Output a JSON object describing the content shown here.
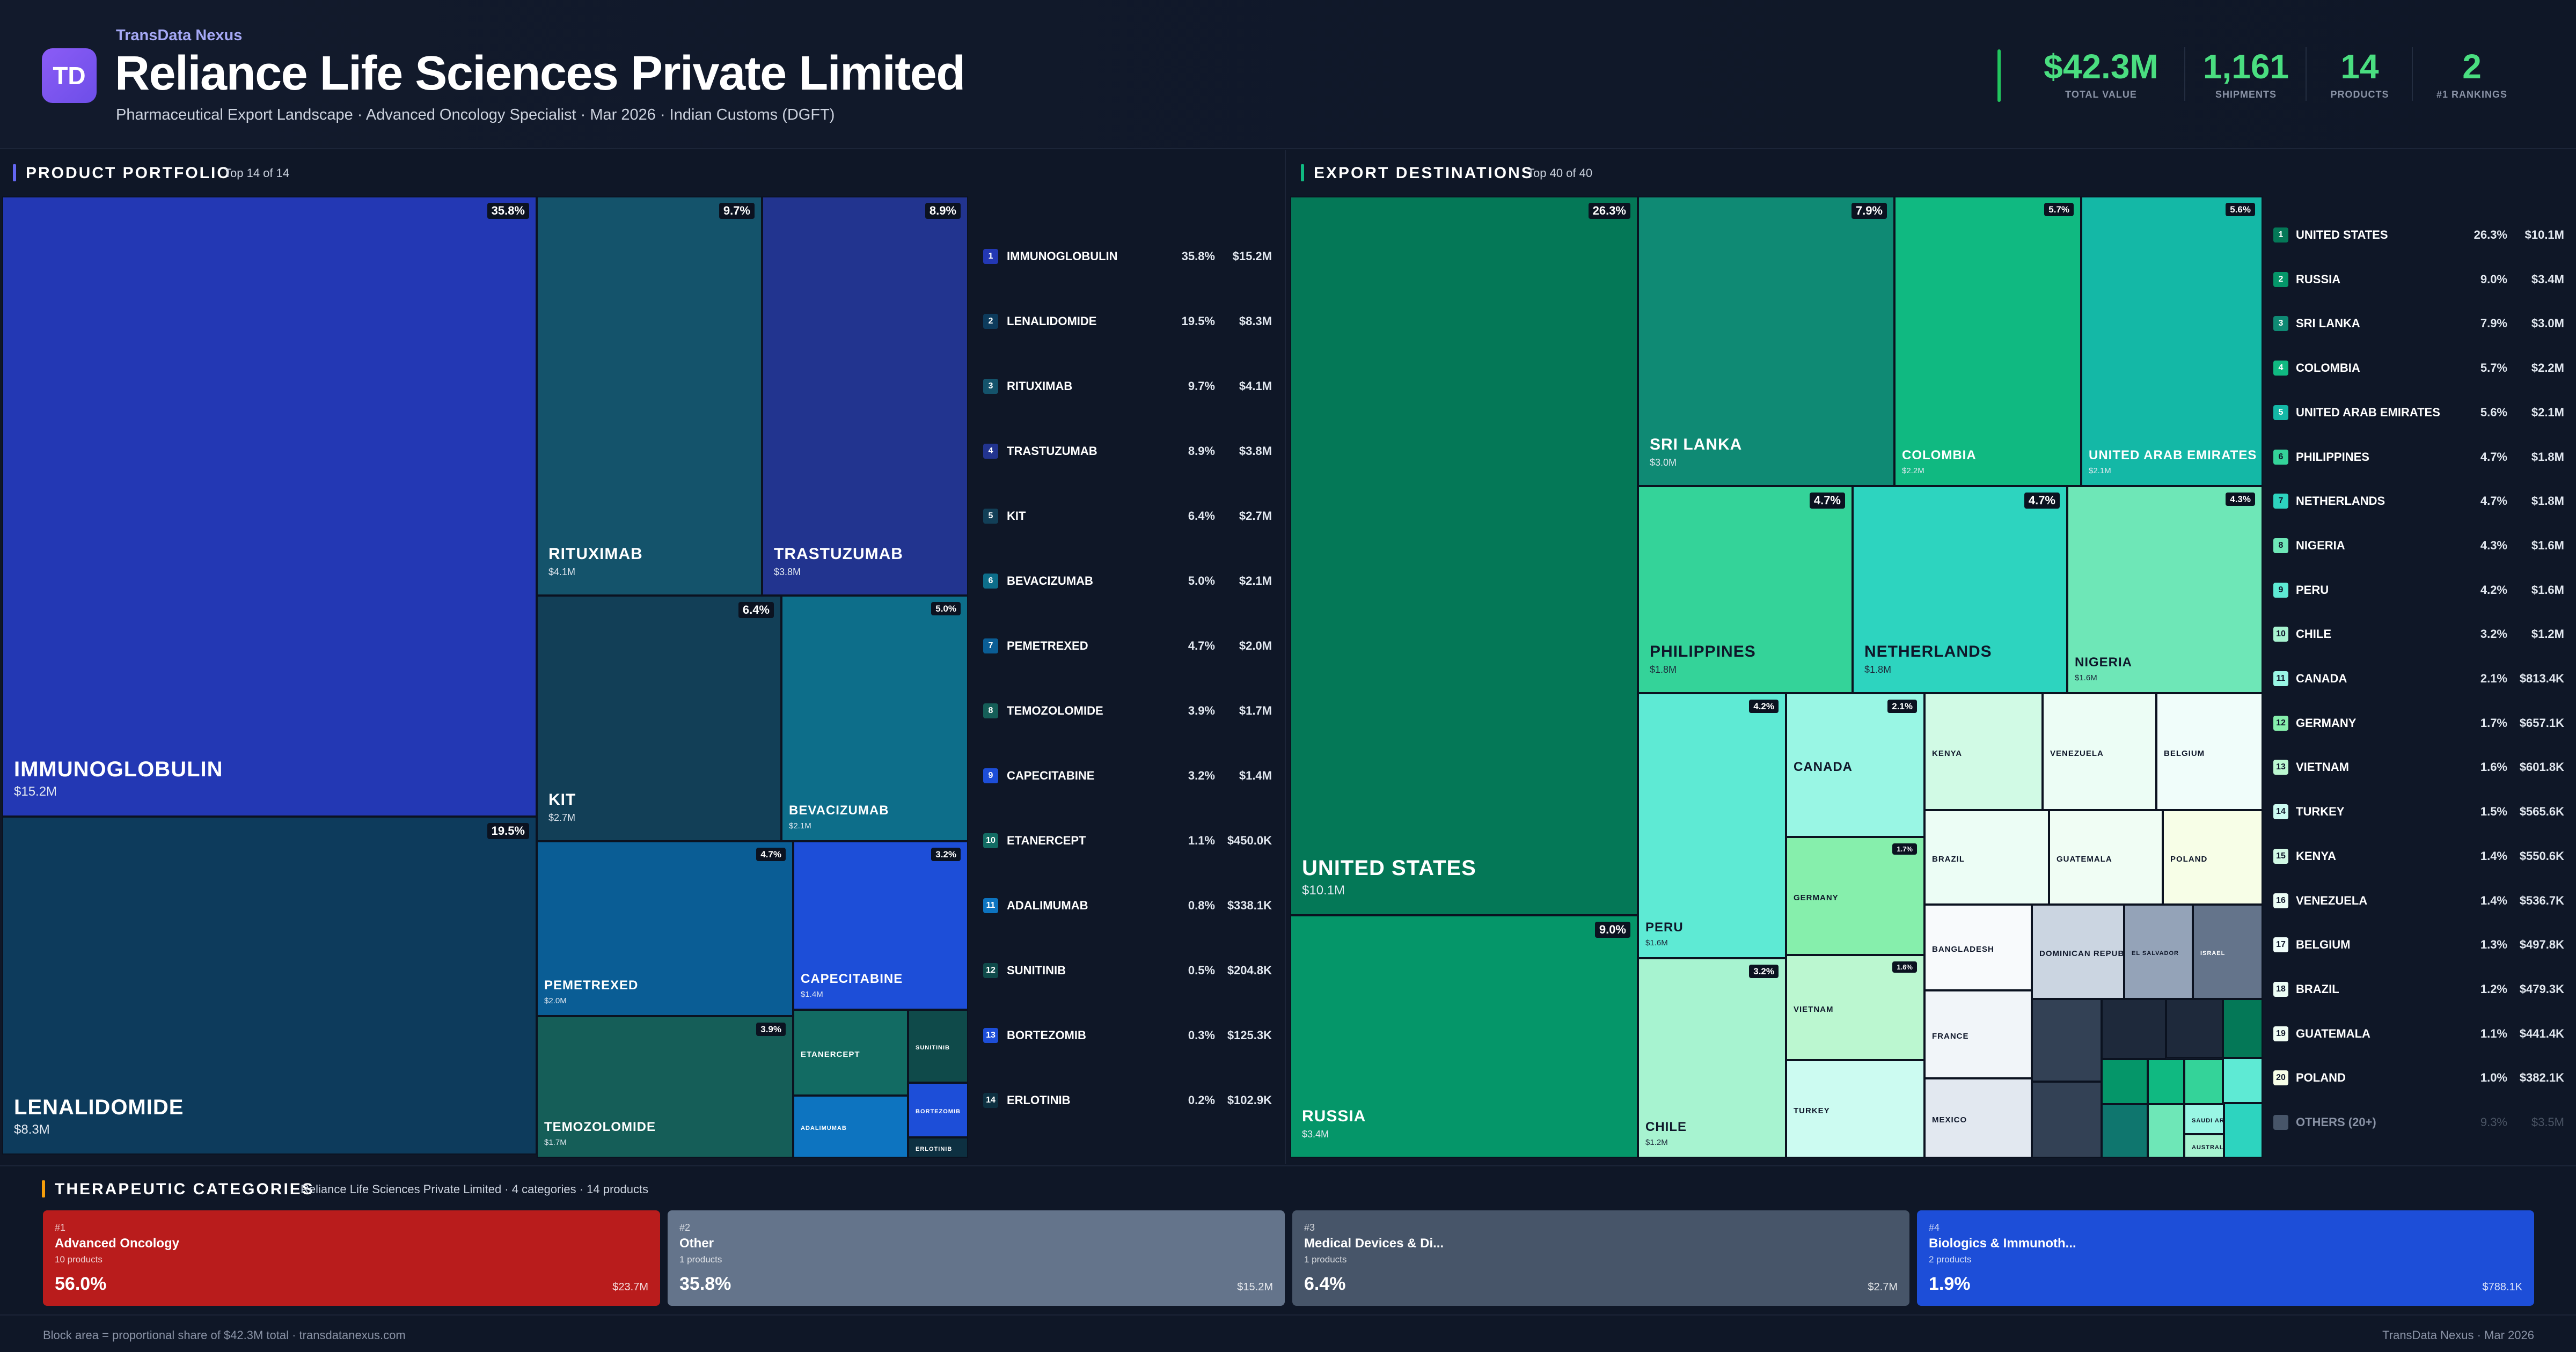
{
  "header": {
    "logo": "TD",
    "brand": "TransData Nexus",
    "title": "Reliance Life Sciences Private Limited",
    "subtitle": "Pharmaceutical Export Landscape · Advanced Oncology Specialist · Mar 2026 · Indian Customs (DGFT)",
    "stats": [
      {
        "value": "$42.3M",
        "label": "TOTAL VALUE"
      },
      {
        "value": "1,161",
        "label": "SHIPMENTS"
      },
      {
        "value": "14",
        "label": "PRODUCTS"
      },
      {
        "value": "2",
        "label": "#1 RANKINGS"
      }
    ]
  },
  "products": {
    "title": "PRODUCT PORTFOLIO",
    "subtitle": "Top 14 of 14",
    "tiles": [
      {
        "name": "IMMUNOGLOBULIN",
        "value": "$15.2M",
        "pct": "35.8%",
        "color": "#2338b4"
      },
      {
        "name": "LENALIDOMIDE",
        "value": "$8.3M",
        "pct": "19.5%",
        "color": "#0d3b5c"
      },
      {
        "name": "RITUXIMAB",
        "value": "$4.1M",
        "pct": "9.7%",
        "color": "#14536b"
      },
      {
        "name": "TRASTUZUMAB",
        "value": "$3.8M",
        "pct": "8.9%",
        "color": "#22348f"
      },
      {
        "name": "KIT",
        "value": "$2.7M",
        "pct": "6.4%",
        "color": "#123f57"
      },
      {
        "name": "BEVACIZUMAB",
        "value": "$2.1M",
        "pct": "5.0%",
        "color": "#0d6e8a"
      },
      {
        "name": "PEMETREXED",
        "value": "$2.0M",
        "pct": "4.7%",
        "color": "#0a5d95"
      },
      {
        "name": "CAPECITABINE",
        "value": "$1.4M",
        "pct": "3.2%",
        "color": "#1d4ed8"
      },
      {
        "name": "TEMOZOLOMIDE",
        "value": "$1.7M",
        "pct": "3.9%",
        "color": "#155e58"
      },
      {
        "name": "ETANERCEPT",
        "value": "",
        "pct": "",
        "color": "#126b63"
      },
      {
        "name": "SUNITINIB",
        "value": "",
        "pct": "",
        "color": "#0f4a4a"
      },
      {
        "name": "BORTEZOMIB",
        "value": "",
        "pct": "",
        "color": "#1d4ed8"
      },
      {
        "name": "ADALIMUMAB",
        "value": "",
        "pct": "",
        "color": "#0d74c0"
      },
      {
        "name": "ERLOTINIB",
        "value": "",
        "pct": "",
        "color": "#0d3041"
      }
    ],
    "list": [
      {
        "rank": "1",
        "name": "IMMUNOGLOBULIN",
        "pct": "35.8%",
        "value": "$15.2M",
        "color": "#2338b4"
      },
      {
        "rank": "2",
        "name": "LENALIDOMIDE",
        "pct": "19.5%",
        "value": "$8.3M",
        "color": "#0d3b5c"
      },
      {
        "rank": "3",
        "name": "RITUXIMAB",
        "pct": "9.7%",
        "value": "$4.1M",
        "color": "#14536b"
      },
      {
        "rank": "4",
        "name": "TRASTUZUMAB",
        "pct": "8.9%",
        "value": "$3.8M",
        "color": "#22348f"
      },
      {
        "rank": "5",
        "name": "KIT",
        "pct": "6.4%",
        "value": "$2.7M",
        "color": "#123f57"
      },
      {
        "rank": "6",
        "name": "BEVACIZUMAB",
        "pct": "5.0%",
        "value": "$2.1M",
        "color": "#0d6e8a"
      },
      {
        "rank": "7",
        "name": "PEMETREXED",
        "pct": "4.7%",
        "value": "$2.0M",
        "color": "#0a5d95"
      },
      {
        "rank": "8",
        "name": "TEMOZOLOMIDE",
        "pct": "3.9%",
        "value": "$1.7M",
        "color": "#155e58"
      },
      {
        "rank": "9",
        "name": "CAPECITABINE",
        "pct": "3.2%",
        "value": "$1.4M",
        "color": "#1d4ed8"
      },
      {
        "rank": "10",
        "name": "ETANERCEPT",
        "pct": "1.1%",
        "value": "$450.0K",
        "color": "#126b63"
      },
      {
        "rank": "11",
        "name": "ADALIMUMAB",
        "pct": "0.8%",
        "value": "$338.1K",
        "color": "#0d74c0"
      },
      {
        "rank": "12",
        "name": "SUNITINIB",
        "pct": "0.5%",
        "value": "$204.8K",
        "color": "#0f4a4a"
      },
      {
        "rank": "13",
        "name": "BORTEZOMIB",
        "pct": "0.3%",
        "value": "$125.3K",
        "color": "#1d4ed8"
      },
      {
        "rank": "14",
        "name": "ERLOTINIB",
        "pct": "0.2%",
        "value": "$102.9K",
        "color": "#0d3041"
      }
    ]
  },
  "destinations": {
    "title": "EXPORT DESTINATIONS",
    "subtitle": "Top 40 of 40",
    "tiles": [
      {
        "name": "UNITED STATES",
        "value": "$10.1M",
        "pct": "26.3%",
        "color": "#047857"
      },
      {
        "name": "RUSSIA",
        "value": "$3.4M",
        "pct": "9.0%",
        "color": "#059669"
      },
      {
        "name": "SRI LANKA",
        "value": "$3.0M",
        "pct": "7.9%",
        "color": "#0f8a74"
      },
      {
        "name": "COLOMBIA",
        "value": "$2.2M",
        "pct": "5.7%",
        "color": "#10b981"
      },
      {
        "name": "UNITED ARAB EMIRATES",
        "value": "$2.1M",
        "pct": "5.6%",
        "color": "#14b8a6"
      },
      {
        "name": "PHILIPPINES",
        "value": "$1.8M",
        "pct": "4.7%",
        "color": "#34d399"
      },
      {
        "name": "NETHERLANDS",
        "value": "$1.8M",
        "pct": "4.7%",
        "color": "#2dd4bf"
      },
      {
        "name": "NIGERIA",
        "value": "$1.6M",
        "pct": "4.3%",
        "color": "#6ee7b7"
      },
      {
        "name": "PERU",
        "value": "$1.6M",
        "pct": "4.2%",
        "color": "#5eead4"
      },
      {
        "name": "CHILE",
        "value": "$1.2M",
        "pct": "3.2%",
        "color": "#a7f3d0"
      },
      {
        "name": "CANADA",
        "value": "",
        "pct": "2.1%",
        "color": "#99f6e4"
      },
      {
        "name": "GERMANY",
        "value": "",
        "pct": "1.7%",
        "color": "#86efac"
      },
      {
        "name": "VIETNAM",
        "value": "",
        "pct": "1.6%",
        "color": "#bbf7d0"
      },
      {
        "name": "TURKEY",
        "value": "",
        "pct": "",
        "color": "#ccfbf1"
      },
      {
        "name": "KENYA",
        "value": "",
        "pct": "",
        "color": "#d1fae5"
      },
      {
        "name": "VENEZUELA",
        "value": "",
        "pct": "",
        "color": "#ecfdf5"
      },
      {
        "name": "BELGIUM",
        "value": "",
        "pct": "",
        "color": "#f0fdfa"
      },
      {
        "name": "BRAZIL",
        "value": "",
        "pct": "",
        "color": "#ecfdf5"
      },
      {
        "name": "GUATEMALA",
        "value": "",
        "pct": "",
        "color": "#f0fdf4"
      },
      {
        "name": "POLAND",
        "value": "",
        "pct": "",
        "color": "#f7fee7"
      },
      {
        "name": "BANGLADESH",
        "value": "",
        "pct": "",
        "color": "#f8fafc"
      },
      {
        "name": "DOMINICAN REPUBLIC",
        "value": "",
        "pct": "",
        "color": "#cbd5e1"
      },
      {
        "name": "EL SALVADOR",
        "value": "",
        "pct": "",
        "color": "#94a3b8"
      },
      {
        "name": "ISRAEL",
        "value": "",
        "pct": "",
        "color": "#64748b"
      },
      {
        "name": "FRANCE",
        "value": "",
        "pct": "",
        "color": "#f1f5f9"
      },
      {
        "name": "MEXICO",
        "value": "",
        "pct": "",
        "color": "#e2e8f0"
      },
      {
        "name": "",
        "value": "",
        "pct": "",
        "color": "#334155"
      },
      {
        "name": "",
        "value": "",
        "pct": "",
        "color": "#1e293b"
      },
      {
        "name": "",
        "value": "",
        "pct": "",
        "color": "#1e293b"
      },
      {
        "name": "",
        "value": "",
        "pct": "",
        "color": "#047857"
      },
      {
        "name": "",
        "value": "",
        "pct": "",
        "color": "#334155"
      },
      {
        "name": "",
        "value": "",
        "pct": "",
        "color": "#059669"
      },
      {
        "name": "",
        "value": "",
        "pct": "",
        "color": "#10b981"
      },
      {
        "name": "",
        "value": "",
        "pct": "",
        "color": "#34d399"
      },
      {
        "name": "",
        "value": "",
        "pct": "",
        "color": "#5eead4"
      },
      {
        "name": "",
        "value": "",
        "pct": "",
        "color": "#0f766e"
      },
      {
        "name": "",
        "value": "",
        "pct": "",
        "color": "#6ee7b7"
      },
      {
        "name": "SAUDI ARABIA",
        "value": "",
        "pct": "",
        "color": "#99f6e4"
      },
      {
        "name": "AUSTRALIA",
        "value": "",
        "pct": "",
        "color": "#a7f3d0"
      },
      {
        "name": "",
        "value": "",
        "pct": "",
        "color": "#2dd4bf"
      }
    ],
    "list": [
      {
        "rank": "1",
        "name": "UNITED STATES",
        "pct": "26.3%",
        "value": "$10.1M",
        "color": "#047857"
      },
      {
        "rank": "2",
        "name": "RUSSIA",
        "pct": "9.0%",
        "value": "$3.4M",
        "color": "#059669"
      },
      {
        "rank": "3",
        "name": "SRI LANKA",
        "pct": "7.9%",
        "value": "$3.0M",
        "color": "#0f8a74"
      },
      {
        "rank": "4",
        "name": "COLOMBIA",
        "pct": "5.7%",
        "value": "$2.2M",
        "color": "#10b981"
      },
      {
        "rank": "5",
        "name": "UNITED ARAB EMIRATES",
        "pct": "5.6%",
        "value": "$2.1M",
        "color": "#14b8a6"
      },
      {
        "rank": "6",
        "name": "PHILIPPINES",
        "pct": "4.7%",
        "value": "$1.8M",
        "color": "#34d399"
      },
      {
        "rank": "7",
        "name": "NETHERLANDS",
        "pct": "4.7%",
        "value": "$1.8M",
        "color": "#2dd4bf"
      },
      {
        "rank": "8",
        "name": "NIGERIA",
        "pct": "4.3%",
        "value": "$1.6M",
        "color": "#6ee7b7"
      },
      {
        "rank": "9",
        "name": "PERU",
        "pct": "4.2%",
        "value": "$1.6M",
        "color": "#5eead4"
      },
      {
        "rank": "10",
        "name": "CHILE",
        "pct": "3.2%",
        "value": "$1.2M",
        "color": "#a7f3d0"
      },
      {
        "rank": "11",
        "name": "CANADA",
        "pct": "2.1%",
        "value": "$813.4K",
        "color": "#99f6e4"
      },
      {
        "rank": "12",
        "name": "GERMANY",
        "pct": "1.7%",
        "value": "$657.1K",
        "color": "#86efac"
      },
      {
        "rank": "13",
        "name": "VIETNAM",
        "pct": "1.6%",
        "value": "$601.8K",
        "color": "#bbf7d0"
      },
      {
        "rank": "14",
        "name": "TURKEY",
        "pct": "1.5%",
        "value": "$565.6K",
        "color": "#ccfbf1"
      },
      {
        "rank": "15",
        "name": "KENYA",
        "pct": "1.4%",
        "value": "$550.6K",
        "color": "#d1fae5"
      },
      {
        "rank": "16",
        "name": "VENEZUELA",
        "pct": "1.4%",
        "value": "$536.7K",
        "color": "#ecfdf5"
      },
      {
        "rank": "17",
        "name": "BELGIUM",
        "pct": "1.3%",
        "value": "$497.8K",
        "color": "#f0fdfa"
      },
      {
        "rank": "18",
        "name": "BRAZIL",
        "pct": "1.2%",
        "value": "$479.3K",
        "color": "#ecfdf5"
      },
      {
        "rank": "19",
        "name": "GUATEMALA",
        "pct": "1.1%",
        "value": "$441.4K",
        "color": "#f0fdf4"
      },
      {
        "rank": "20",
        "name": "POLAND",
        "pct": "1.0%",
        "value": "$382.1K",
        "color": "#f7fee7"
      }
    ],
    "others": {
      "name": "OTHERS (20+)",
      "pct": "9.3%",
      "value": "$3.5M",
      "color": "#475569"
    }
  },
  "categories": {
    "title": "THERAPEUTIC CATEGORIES",
    "subtitle": "Reliance Life Sciences Private Limited · 4 categories · 14 products",
    "items": [
      {
        "rank": "#1",
        "name": "Advanced Oncology",
        "products": "10 products",
        "share": "56.0%",
        "value": "$23.7M",
        "color": "#b91c1c"
      },
      {
        "rank": "#2",
        "name": "Other",
        "products": "1 products",
        "share": "35.8%",
        "value": "$15.2M",
        "color": "#64748b"
      },
      {
        "rank": "#3",
        "name": "Medical Devices & Di...",
        "products": "1 products",
        "share": "6.4%",
        "value": "$2.7M",
        "color": "#475569"
      },
      {
        "rank": "#4",
        "name": "Biologics & Immunoth...",
        "products": "2 products",
        "share": "1.9%",
        "value": "$788.1K",
        "color": "#1d4ed8"
      }
    ]
  },
  "footer": {
    "left": "Block area = proportional share of $42.3M total · transdatanexus.com",
    "right": "TransData Nexus · Mar 2026"
  }
}
